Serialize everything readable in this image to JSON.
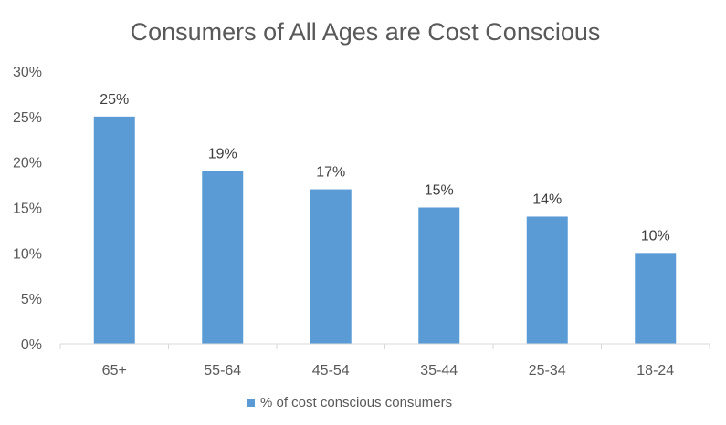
{
  "chart_data": {
    "type": "bar",
    "title": "Consumers of All Ages are Cost Conscious",
    "categories": [
      "65+",
      "55-64",
      "45-54",
      "35-44",
      "25-34",
      "18-24"
    ],
    "series": [
      {
        "name": "% of cost conscious consumers",
        "values": [
          25,
          19,
          17,
          15,
          14,
          10
        ],
        "labels": [
          "25%",
          "19%",
          "17%",
          "15%",
          "14%",
          "10%"
        ],
        "color": "#5B9BD5"
      }
    ],
    "ylim": [
      0,
      30
    ],
    "yticks": [
      0,
      5,
      10,
      15,
      20,
      25,
      30
    ],
    "ytick_labels": [
      "0%",
      "5%",
      "10%",
      "15%",
      "20%",
      "25%",
      "30%"
    ],
    "grid": false,
    "legend_position": "bottom"
  }
}
